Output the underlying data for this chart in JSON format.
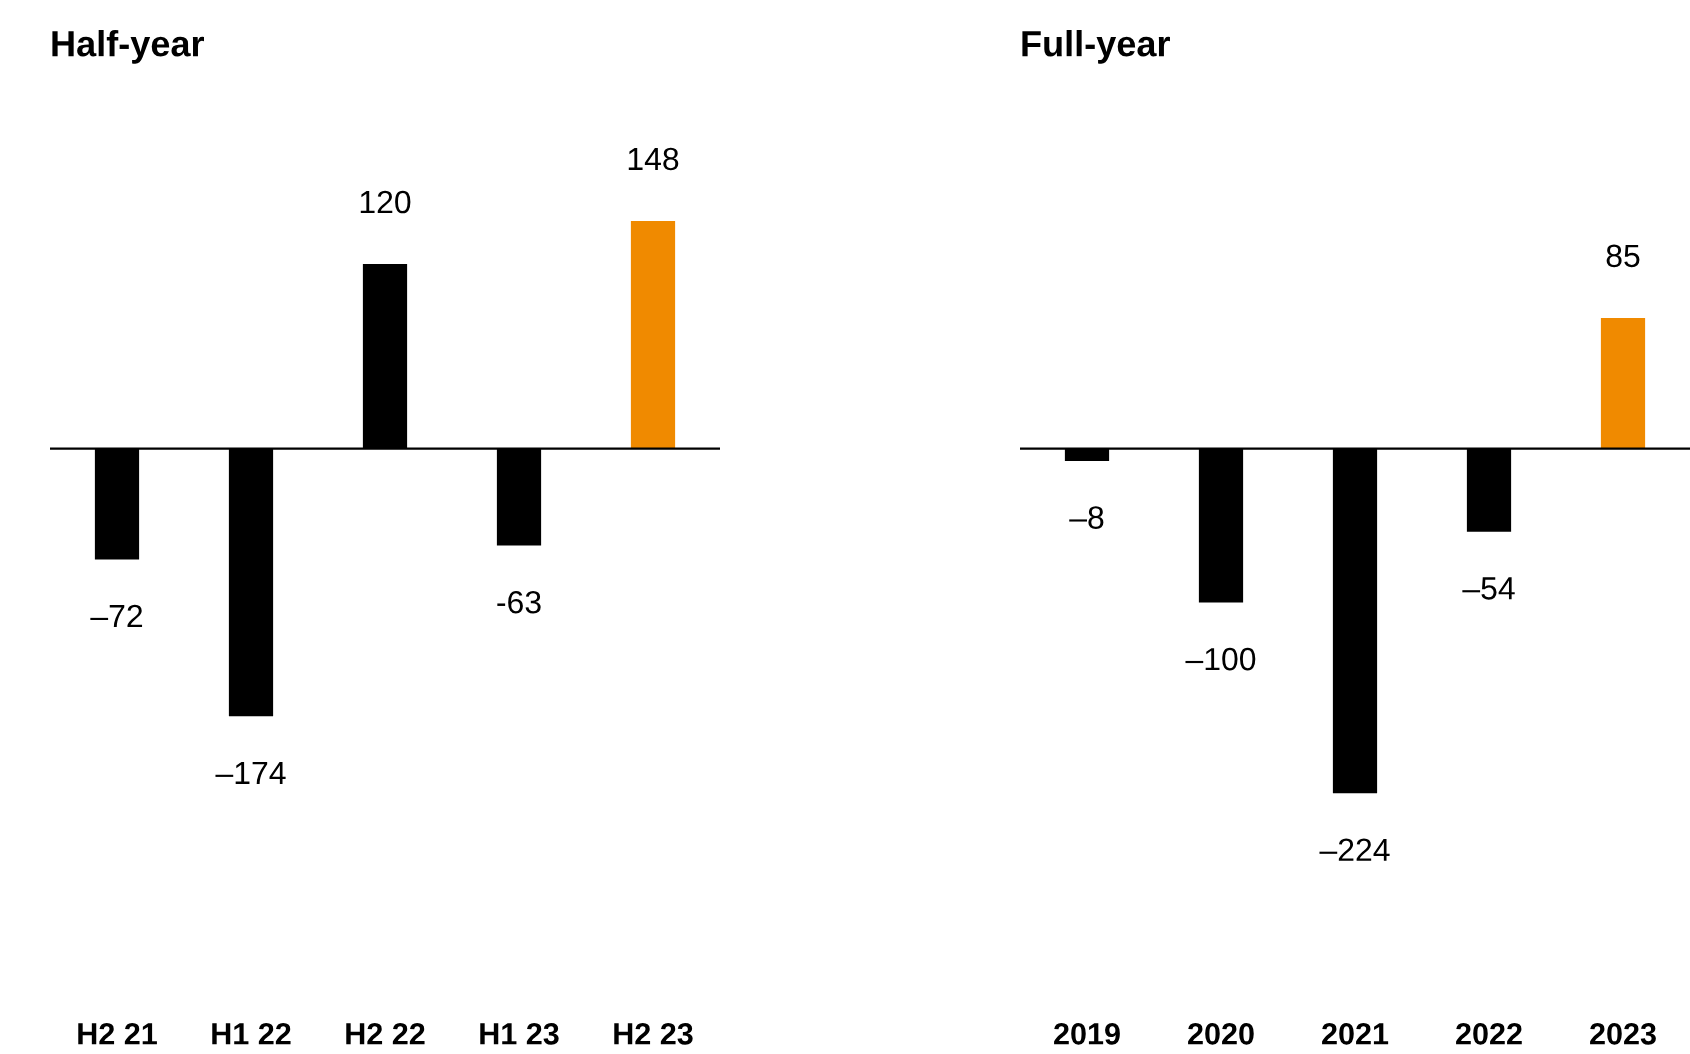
{
  "chart_data": [
    {
      "type": "bar",
      "title": "Half-year",
      "categories": [
        "H2 21",
        "H1 22",
        "H2 22",
        "H1 23",
        "H2 23"
      ],
      "values": [
        -72,
        -174,
        120,
        -63,
        148
      ],
      "colors": [
        "#000000",
        "#000000",
        "#000000",
        "#000000",
        "#f08a00"
      ],
      "value_labels": [
        "–72",
        "–174",
        "120",
        "-63",
        "148"
      ],
      "tick_labels": "x",
      "grid": false,
      "legend": false
    },
    {
      "type": "bar",
      "title": "Full-year",
      "categories": [
        "2019",
        "2020",
        "2021",
        "2022",
        "2023"
      ],
      "values": [
        -8,
        -100,
        -224,
        -54,
        85
      ],
      "colors": [
        "#000000",
        "#000000",
        "#000000",
        "#000000",
        "#f08a00"
      ],
      "value_labels": [
        "–8",
        "–100",
        "–224",
        "–54",
        "85"
      ],
      "tick_labels": "x",
      "grid": false,
      "legend": false
    }
  ]
}
